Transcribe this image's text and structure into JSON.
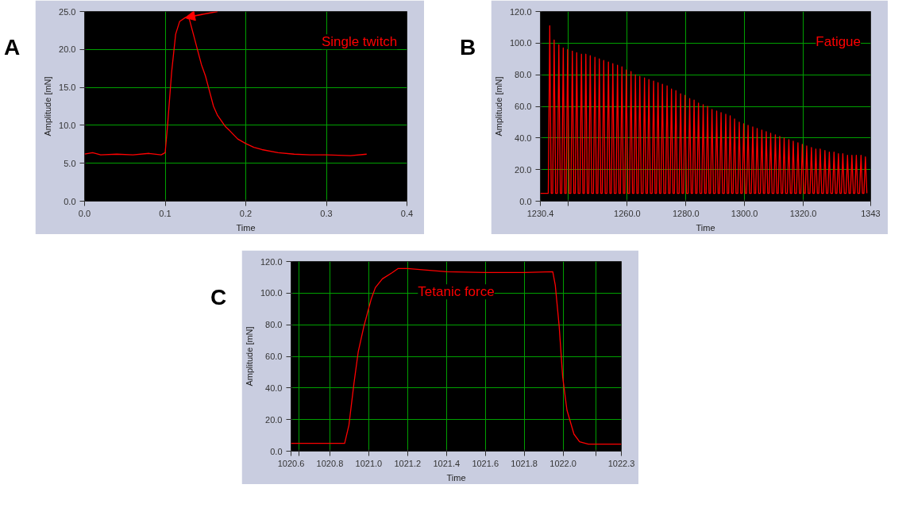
{
  "chart_data": [
    {
      "type": "line",
      "title": "A",
      "xlabel": "Time",
      "ylabel": "Amplitude [mN]",
      "annotations": [
        "Single twitch"
      ],
      "xlim": [
        0,
        0.4
      ],
      "ylim": [
        0,
        25
      ],
      "xticks": [
        {
          "value": 0,
          "label": "0.0"
        },
        {
          "value": 0.1,
          "label": "0.1"
        },
        {
          "value": 0.2,
          "label": "0.2"
        },
        {
          "value": 0.3,
          "label": "0.3"
        },
        {
          "value": 0.4,
          "label": "0.4"
        }
      ],
      "yticks": [
        {
          "value": 0,
          "label": "0.0"
        },
        {
          "value": 5,
          "label": "5.0"
        },
        {
          "value": 10,
          "label": "10.0"
        },
        {
          "value": 15,
          "label": "15.0"
        },
        {
          "value": 20,
          "label": "20.0"
        },
        {
          "value": 25,
          "label": "25.0"
        }
      ],
      "grid": true,
      "series": [
        {
          "color": "#ff0000",
          "x": [
            0,
            0.01,
            0.02,
            0.04,
            0.06,
            0.08,
            0.095,
            0.1,
            0.103,
            0.108,
            0.113,
            0.118,
            0.125,
            0.13,
            0.135,
            0.14,
            0.145,
            0.15,
            0.155,
            0.16,
            0.165,
            0.175,
            0.18,
            0.19,
            0.2,
            0.21,
            0.22,
            0.24,
            0.26,
            0.28,
            0.3,
            0.33,
            0.35
          ],
          "values": [
            6.2,
            6.4,
            6.1,
            6.2,
            6.1,
            6.3,
            6.1,
            6.4,
            10,
            17,
            22,
            23.7,
            24.2,
            24,
            22,
            20,
            18,
            16.5,
            14.5,
            12.5,
            11.3,
            9.8,
            9.3,
            8.2,
            7.6,
            7.1,
            6.8,
            6.4,
            6.2,
            6.1,
            6.1,
            6.0,
            6.2
          ]
        }
      ]
    },
    {
      "type": "line",
      "title": "B",
      "xlabel": "Time",
      "ylabel": "Amplitude [mN]",
      "annotations": [
        "Fatigue"
      ],
      "xlim": [
        1230.4,
        1343
      ],
      "ylim": [
        0,
        120
      ],
      "xticks": [
        {
          "value": 1230.4,
          "label": "1230.4"
        },
        {
          "value": 1240,
          "label": null
        },
        {
          "value": 1260,
          "label": "1260.0"
        },
        {
          "value": 1280,
          "label": "1280.0"
        },
        {
          "value": 1300,
          "label": "1300.0"
        },
        {
          "value": 1320,
          "label": "1320.0"
        },
        {
          "value": 1343,
          "label": "1343"
        }
      ],
      "yticks": [
        {
          "value": 0,
          "label": "0.0"
        },
        {
          "value": 20,
          "label": "20.0"
        },
        {
          "value": 40,
          "label": "40.0"
        },
        {
          "value": 60,
          "label": "60.0"
        },
        {
          "value": 80,
          "label": "80.0"
        },
        {
          "value": 100,
          "label": "100.0"
        },
        {
          "value": 120,
          "label": "120.0"
        }
      ],
      "grid": true,
      "series": [
        {
          "color": "#ff0000",
          "x": [
            1230.4,
            1233.1,
            1233.6,
            1234.1,
            1234.6,
            1235.1,
            1235.6,
            1236.2,
            1236.7,
            1237.2,
            1237.7,
            1238.2,
            1238.7,
            1239.2,
            1239.7,
            1240.2,
            1240.8,
            1241.3,
            1241.8,
            1242.3,
            1242.8,
            1243.3,
            1243.9,
            1244.4,
            1244.9,
            1245.4,
            1245.9,
            1246.4,
            1246.9,
            1247.4,
            1247.9,
            1248.5,
            1249.0,
            1249.5,
            1250.0,
            1250.5,
            1251.0,
            1251.5,
            1252.0,
            1252.5,
            1253.1,
            1253.6,
            1254.1,
            1254.6,
            1255.1,
            1255.6,
            1256.2,
            1256.7,
            1257.2,
            1257.7,
            1258.2,
            1258.7,
            1259.2,
            1259.7,
            1260.2,
            1260.8,
            1261.3,
            1261.8,
            1262.3,
            1262.8,
            1263.3,
            1263.8,
            1264.3,
            1264.8,
            1265.4,
            1265.9,
            1266.4,
            1266.9,
            1267.4,
            1267.9,
            1268.5,
            1269.0,
            1269.5,
            1270.0,
            1270.5,
            1271.0,
            1271.5,
            1272.0,
            1272.5,
            1273.1,
            1273.6,
            1274.1,
            1274.6,
            1275.1,
            1275.6,
            1276.1,
            1276.6,
            1277.1,
            1277.7,
            1278.2,
            1278.7,
            1279.2,
            1279.7,
            1280.2,
            1280.8,
            1281.3,
            1281.8,
            1282.3,
            1282.8,
            1283.3,
            1283.8,
            1284.3,
            1284.8,
            1285.4,
            1285.9,
            1286.4,
            1286.9,
            1287.4,
            1287.9,
            1288.4,
            1288.9,
            1289.4,
            1290.0,
            1290.5,
            1291.0,
            1291.5,
            1292.0,
            1292.5,
            1293.1,
            1293.6,
            1294.1,
            1294.6,
            1295.1,
            1295.6,
            1296.1,
            1296.6,
            1297.1,
            1297.7,
            1298.2,
            1298.7,
            1299.2,
            1299.7,
            1300.2,
            1300.7,
            1301.2,
            1301.7,
            1302.3,
            1302.8,
            1303.3,
            1303.8,
            1304.3,
            1304.8,
            1305.4,
            1305.9,
            1306.4,
            1306.9,
            1307.4,
            1307.9,
            1308.4,
            1308.9,
            1309.4,
            1310.0,
            1310.5,
            1311.0,
            1311.5,
            1312.0,
            1312.5,
            1313.0,
            1313.5,
            1314.0,
            1314.6,
            1315.1,
            1315.6,
            1316.1,
            1316.6,
            1317.1,
            1317.7,
            1318.2,
            1318.7,
            1319.2,
            1319.7,
            1320.2,
            1320.7,
            1321.2,
            1321.7,
            1322.3,
            1322.8,
            1323.3,
            1323.8,
            1324.3,
            1324.8,
            1325.3,
            1325.8,
            1326.3,
            1326.9,
            1327.4,
            1327.9,
            1328.4,
            1328.9,
            1329.4,
            1330.0,
            1330.5,
            1331.0,
            1331.5,
            1332.0,
            1332.5,
            1333.0,
            1333.5,
            1334.0,
            1334.6,
            1335.1,
            1335.6,
            1336.1,
            1336.6,
            1337.1,
            1337.6,
            1338.1,
            1338.6,
            1339.2,
            1339.7,
            1340.2,
            1340.7,
            1341.2,
            1341.7
          ],
          "values": [
            5,
            5,
            111,
            5,
            5,
            102,
            5,
            5,
            99,
            5,
            5,
            97,
            5,
            5,
            96,
            5,
            5,
            95,
            5,
            5,
            94,
            5,
            5,
            93,
            5,
            5,
            93,
            5,
            5,
            92,
            5,
            5,
            91,
            5,
            5,
            90,
            5,
            5,
            89,
            5,
            5,
            88,
            5,
            5,
            87,
            5,
            5,
            86,
            5,
            5,
            85,
            5,
            5,
            83,
            5,
            5,
            82,
            5,
            5,
            80,
            5,
            5,
            79,
            5,
            5,
            78,
            5,
            5,
            77,
            5,
            5,
            76,
            5,
            5,
            75,
            5,
            5,
            74,
            5,
            5,
            73,
            5,
            5,
            71,
            5,
            5,
            70,
            5,
            5,
            68,
            5,
            5,
            67,
            5,
            5,
            65,
            5,
            5,
            64,
            5,
            5,
            62,
            5,
            5,
            61,
            5,
            5,
            60,
            5,
            5,
            58,
            5,
            5,
            57,
            5,
            5,
            56,
            5,
            5,
            55,
            5,
            5,
            54,
            5,
            5,
            52,
            5,
            5,
            50,
            5,
            5,
            49,
            5,
            5,
            48,
            5,
            5,
            47,
            5,
            5,
            46,
            5,
            5,
            45,
            5,
            5,
            44,
            5,
            5,
            43,
            5,
            5,
            42,
            5,
            5,
            41,
            5,
            5,
            40,
            5,
            5,
            39,
            5,
            5,
            38,
            5,
            5,
            37,
            5,
            5,
            36,
            5,
            5,
            35,
            5,
            5,
            34,
            5,
            5,
            33,
            5,
            5,
            33,
            5,
            5,
            32,
            5,
            5,
            31,
            5,
            5,
            31,
            5,
            5,
            30,
            5,
            5,
            30,
            5,
            5,
            29,
            5,
            5,
            29,
            5,
            5,
            29,
            5,
            5,
            29,
            5,
            5,
            28,
            5
          ]
        }
      ]
    },
    {
      "type": "line",
      "title": "C",
      "xlabel": "Time",
      "ylabel": "Amplitude [mN]",
      "annotations": [
        "Tetanic force"
      ],
      "xlim": [
        1020.6,
        1022.3
      ],
      "ylim": [
        0,
        120
      ],
      "xticks": [
        {
          "value": 1020.6,
          "label": "1020.6"
        },
        {
          "value": 1020.64,
          "label": null
        },
        {
          "value": 1020.8,
          "label": "1020.8"
        },
        {
          "value": 1021.0,
          "label": "1021.0"
        },
        {
          "value": 1021.2,
          "label": "1021.2"
        },
        {
          "value": 1021.4,
          "label": "1021.4"
        },
        {
          "value": 1021.6,
          "label": "1021.6"
        },
        {
          "value": 1021.8,
          "label": "1021.8"
        },
        {
          "value": 1022.0,
          "label": "1022.0"
        },
        {
          "value": 1022.17,
          "label": null
        },
        {
          "value": 1022.3,
          "label": "1022.3"
        }
      ],
      "yticks": [
        {
          "value": 0,
          "label": "0.0"
        },
        {
          "value": 20,
          "label": "20.0"
        },
        {
          "value": 40,
          "label": "40.0"
        },
        {
          "value": 60,
          "label": "60.0"
        },
        {
          "value": 80,
          "label": "80.0"
        },
        {
          "value": 100,
          "label": "100.0"
        },
        {
          "value": 120,
          "label": "120.0"
        }
      ],
      "grid": true,
      "series": [
        {
          "color": "#ff0000",
          "x": [
            1020.6,
            1020.876,
            1020.898,
            1020.924,
            1020.946,
            1020.975,
            1021.012,
            1021.034,
            1021.07,
            1021.121,
            1021.15,
            1021.2,
            1021.3,
            1021.4,
            1021.6,
            1021.8,
            1021.947,
            1021.96,
            1021.98,
            1021.998,
            1022.02,
            1022.056,
            1022.085,
            1022.13,
            1022.3
          ],
          "values": [
            5,
            5,
            16.5,
            43,
            63,
            79,
            96,
            103.5,
            109,
            113,
            115.5,
            115.5,
            114.5,
            113.5,
            113,
            113,
            113.5,
            105,
            79,
            47,
            26,
            10.8,
            6,
            4.5,
            4.5
          ]
        }
      ]
    }
  ]
}
